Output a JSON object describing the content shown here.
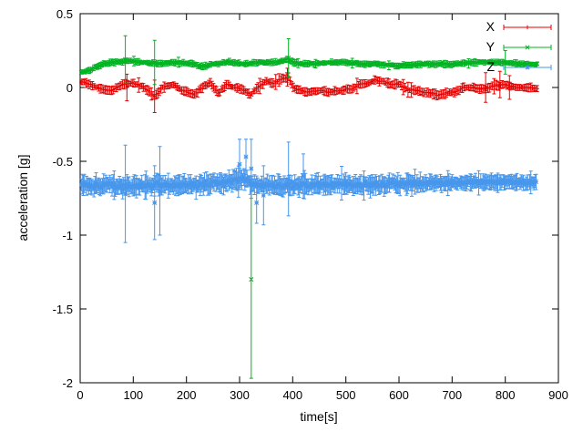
{
  "figure": {
    "background": "#ffffff",
    "axis_color": "#000000"
  },
  "chart_data": {
    "type": "scatter-errorbars",
    "title": "",
    "xlabel": "time[s]",
    "ylabel": "acceleration [g]",
    "xlim": [
      0,
      900
    ],
    "ylim": [
      -2,
      0.5
    ],
    "xtick_values": [
      0,
      100,
      200,
      300,
      400,
      500,
      600,
      700,
      800,
      900
    ],
    "xtick_labels": [
      "0",
      "100",
      "200",
      "300",
      "400",
      "500",
      "600",
      "700",
      "800",
      "900"
    ],
    "ytick_values": [
      0.5,
      0,
      -0.5,
      -1,
      -1.5,
      -2
    ],
    "ytick_labels": [
      "0.5",
      "0",
      "-0.5",
      "-1",
      "-1.5",
      "-2"
    ],
    "grid": false,
    "legend_position": "top-right",
    "series": [
      {
        "name": "X",
        "color": "#e60000",
        "marker": "+",
        "seed": 11,
        "t_start": 2,
        "t_end": 860,
        "dt": 3,
        "noise": 0.009,
        "err": 0.022,
        "anchors": [
          [
            0,
            0.04
          ],
          [
            20,
            0.02
          ],
          [
            40,
            -0.01
          ],
          [
            60,
            -0.02
          ],
          [
            80,
            0.02
          ],
          [
            100,
            0.03
          ],
          [
            120,
            0
          ],
          [
            140,
            -0.06
          ],
          [
            155,
            0
          ],
          [
            175,
            0.02
          ],
          [
            195,
            -0.02
          ],
          [
            215,
            -0.05
          ],
          [
            230,
            0
          ],
          [
            245,
            0.03
          ],
          [
            260,
            -0.04
          ],
          [
            275,
            0.02
          ],
          [
            290,
            0
          ],
          [
            305,
            -0.01
          ],
          [
            320,
            -0.05
          ],
          [
            335,
            0
          ],
          [
            350,
            0.04
          ],
          [
            365,
            0.03
          ],
          [
            380,
            0.06
          ],
          [
            392,
            0.07
          ],
          [
            400,
            0
          ],
          [
            415,
            -0.02
          ],
          [
            430,
            -0.03
          ],
          [
            450,
            -0.02
          ],
          [
            470,
            -0.03
          ],
          [
            490,
            -0.02
          ],
          [
            510,
            -0.01
          ],
          [
            525,
            0.02
          ],
          [
            540,
            0.03
          ],
          [
            555,
            0.05
          ],
          [
            570,
            0.04
          ],
          [
            585,
            0.02
          ],
          [
            600,
            0.02
          ],
          [
            615,
            -0.01
          ],
          [
            630,
            -0.02
          ],
          [
            645,
            -0.03
          ],
          [
            660,
            -0.04
          ],
          [
            675,
            -0.05
          ],
          [
            690,
            -0.04
          ],
          [
            705,
            -0.03
          ],
          [
            720,
            0
          ],
          [
            740,
            0
          ],
          [
            760,
            -0.01
          ],
          [
            780,
            0.01
          ],
          [
            800,
            0.02
          ],
          [
            820,
            0
          ],
          [
            840,
            0
          ],
          [
            860,
            -0.01
          ]
        ],
        "outliers": [
          [
            88,
            0,
            0.09
          ],
          [
            140,
            -0.06,
            0.11
          ],
          [
            390,
            0.07,
            0.06
          ],
          [
            763,
            0,
            0.1
          ],
          [
            790,
            0.02,
            0.09
          ],
          [
            808,
            0,
            0.08
          ]
        ]
      },
      {
        "name": "Y",
        "color": "#00b321",
        "marker": "x",
        "seed": 23,
        "t_start": 2,
        "t_end": 860,
        "dt": 3,
        "noise": 0.007,
        "err": 0.016,
        "anchors": [
          [
            0,
            0.1
          ],
          [
            15,
            0.11
          ],
          [
            30,
            0.14
          ],
          [
            45,
            0.16
          ],
          [
            60,
            0.17
          ],
          [
            90,
            0.18
          ],
          [
            120,
            0.17
          ],
          [
            150,
            0.16
          ],
          [
            180,
            0.17
          ],
          [
            210,
            0.16
          ],
          [
            230,
            0.14
          ],
          [
            250,
            0.16
          ],
          [
            280,
            0.17
          ],
          [
            310,
            0.16
          ],
          [
            340,
            0.17
          ],
          [
            370,
            0.17
          ],
          [
            390,
            0.19
          ],
          [
            410,
            0.16
          ],
          [
            440,
            0.16
          ],
          [
            470,
            0.17
          ],
          [
            500,
            0.17
          ],
          [
            530,
            0.16
          ],
          [
            560,
            0.16
          ],
          [
            590,
            0.15
          ],
          [
            620,
            0.15
          ],
          [
            650,
            0.16
          ],
          [
            680,
            0.16
          ],
          [
            710,
            0.16
          ],
          [
            740,
            0.17
          ],
          [
            770,
            0.17
          ],
          [
            800,
            0.17
          ],
          [
            830,
            0.16
          ],
          [
            860,
            0.16
          ]
        ],
        "outliers": [
          [
            85,
            0.19,
            0.16
          ],
          [
            140,
            0.17,
            0.15
          ],
          [
            322,
            -1.3,
            0.67
          ],
          [
            392,
            0.2,
            0.13
          ],
          [
            800,
            0.17,
            0.08
          ]
        ]
      },
      {
        "name": "Z",
        "color": "#4696ec",
        "marker": "*",
        "seed": 37,
        "t_start": 2,
        "t_end": 858,
        "dt": 2,
        "noise": 0.03,
        "err": 0.05,
        "taper": {
          "after": 640,
          "factor": 0.65
        },
        "anchors": [
          [
            0,
            -0.66
          ],
          [
            40,
            -0.665
          ],
          [
            80,
            -0.67
          ],
          [
            120,
            -0.665
          ],
          [
            160,
            -0.66
          ],
          [
            200,
            -0.66
          ],
          [
            240,
            -0.655
          ],
          [
            280,
            -0.64
          ],
          [
            310,
            -0.62
          ],
          [
            330,
            -0.66
          ],
          [
            360,
            -0.665
          ],
          [
            400,
            -0.66
          ],
          [
            440,
            -0.66
          ],
          [
            480,
            -0.655
          ],
          [
            520,
            -0.66
          ],
          [
            560,
            -0.655
          ],
          [
            600,
            -0.65
          ],
          [
            640,
            -0.65
          ],
          [
            680,
            -0.645
          ],
          [
            720,
            -0.645
          ],
          [
            760,
            -0.64
          ],
          [
            800,
            -0.64
          ],
          [
            860,
            -0.645
          ]
        ],
        "outliers": [
          [
            85,
            -0.72,
            0.33
          ],
          [
            140,
            -0.78,
            0.25
          ],
          [
            150,
            -0.7,
            0.3
          ],
          [
            300,
            -0.52,
            0.17
          ],
          [
            312,
            -0.47,
            0.12
          ],
          [
            322,
            -0.55,
            0.2
          ],
          [
            332,
            -0.78,
            0.14
          ],
          [
            345,
            -0.73,
            0.2
          ],
          [
            392,
            -0.62,
            0.25
          ],
          [
            420,
            -0.6,
            0.15
          ]
        ]
      }
    ]
  }
}
